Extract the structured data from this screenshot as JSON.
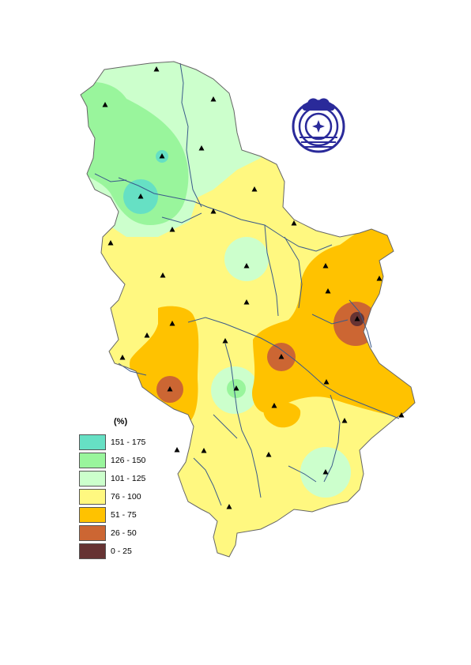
{
  "legend": {
    "title": "(%)",
    "classes": [
      {
        "label": "151 - 175",
        "color": "#66e0c4"
      },
      {
        "label": "126 - 150",
        "color": "#99f59c"
      },
      {
        "label": "101 - 125",
        "color": "#ccffcc"
      },
      {
        "label": "76 - 100",
        "color": "#fff880"
      },
      {
        "label": "51 - 75",
        "color": "#ffc200"
      },
      {
        "label": "26 - 50",
        "color": "#cc6633"
      },
      {
        "label": "0 - 25",
        "color": "#663333"
      }
    ]
  },
  "map": {
    "region": "Serbia",
    "border_color": "#666666",
    "river_color": "#3a5a8a",
    "station_marker": "triangle-icon",
    "logo": "hydrometeorological-service-logo"
  }
}
